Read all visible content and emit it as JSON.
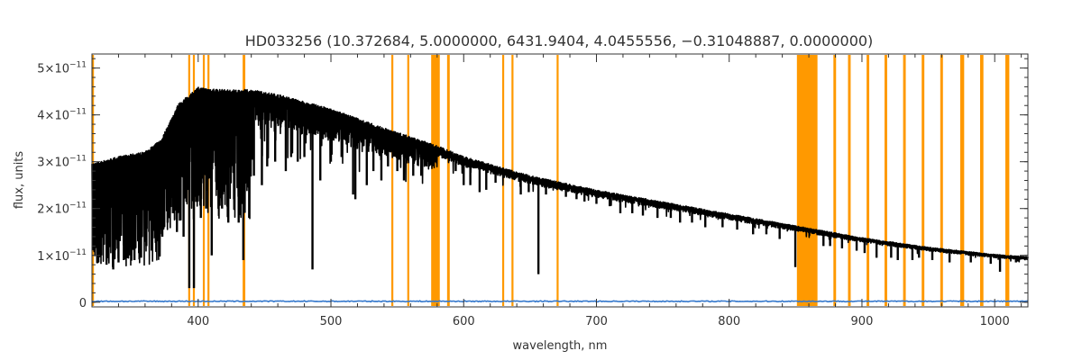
{
  "chart_data": {
    "type": "line",
    "title": "HD033256   (10.372684, 5.0000000, 6431.9404, 4.0455556, −0.31048887, 0.0000000)",
    "xlabel": "wavelength, nm",
    "ylabel": "flux, units",
    "xlim": [
      320,
      1025
    ],
    "ylim": [
      -1e-12,
      5.3e-11
    ],
    "x_ticks": [
      {
        "value": 400,
        "label": "400"
      },
      {
        "value": 500,
        "label": "500"
      },
      {
        "value": 600,
        "label": "600"
      },
      {
        "value": 700,
        "label": "700"
      },
      {
        "value": 800,
        "label": "800"
      },
      {
        "value": 900,
        "label": "900"
      },
      {
        "value": 1000,
        "label": "1000"
      }
    ],
    "y_ticks": [
      {
        "value": 0,
        "mant": "0",
        "exp": ""
      },
      {
        "value": 1e-11,
        "mant": "1×10",
        "exp": "−11"
      },
      {
        "value": 2e-11,
        "mant": "2×10",
        "exp": "−11"
      },
      {
        "value": 3e-11,
        "mant": "3×10",
        "exp": "−11"
      },
      {
        "value": 4e-11,
        "mant": "4×10",
        "exp": "−11"
      },
      {
        "value": 5e-11,
        "mant": "5×10",
        "exp": "−11"
      }
    ],
    "x_minor_step": 20,
    "y_minor_step": 2e-12,
    "colors": {
      "spectrum": "#000000",
      "masked": "#ff9900",
      "error": "#3377cc",
      "axes": "#333333"
    },
    "masked_regions": [
      [
        320,
        321.5
      ],
      [
        392.5,
        394
      ],
      [
        396,
        397.5
      ],
      [
        403.5,
        405
      ],
      [
        407,
        408.5
      ],
      [
        433.5,
        435.5
      ],
      [
        545.5,
        547
      ],
      [
        557.5,
        559
      ],
      [
        575.5,
        582
      ],
      [
        587.5,
        589.5
      ],
      [
        629,
        630.5
      ],
      [
        636,
        637.5
      ],
      [
        670,
        671.5
      ],
      [
        851,
        866.5
      ],
      [
        878.5,
        880.5
      ],
      [
        889.5,
        891.5
      ],
      [
        903.5,
        905.5
      ],
      [
        917,
        919
      ],
      [
        931,
        933
      ],
      [
        945,
        947
      ],
      [
        959,
        961
      ],
      [
        974,
        977
      ],
      [
        989,
        991.5
      ],
      [
        1008,
        1011
      ]
    ],
    "continuum": [
      {
        "x": 320,
        "y": 2.9e-11
      },
      {
        "x": 340,
        "y": 3.05e-11
      },
      {
        "x": 360,
        "y": 3.15e-11
      },
      {
        "x": 372,
        "y": 3.4e-11
      },
      {
        "x": 385,
        "y": 4.15e-11
      },
      {
        "x": 400,
        "y": 4.5e-11
      },
      {
        "x": 420,
        "y": 4.45e-11
      },
      {
        "x": 440,
        "y": 4.45e-11
      },
      {
        "x": 460,
        "y": 4.35e-11
      },
      {
        "x": 500,
        "y": 4.05e-11
      },
      {
        "x": 540,
        "y": 3.65e-11
      },
      {
        "x": 578,
        "y": 3.3e-11
      },
      {
        "x": 600,
        "y": 3.05e-11
      },
      {
        "x": 650,
        "y": 2.65e-11
      },
      {
        "x": 700,
        "y": 2.35e-11
      },
      {
        "x": 750,
        "y": 2.1e-11
      },
      {
        "x": 800,
        "y": 1.85e-11
      },
      {
        "x": 850,
        "y": 1.6e-11
      },
      {
        "x": 900,
        "y": 1.35e-11
      },
      {
        "x": 950,
        "y": 1.15e-11
      },
      {
        "x": 1000,
        "y": 1e-11
      },
      {
        "x": 1025,
        "y": 9.5e-12
      }
    ],
    "absorption_lines": [
      {
        "x": 323,
        "y": 1.2e-11
      },
      {
        "x": 327,
        "y": 1e-11
      },
      {
        "x": 331,
        "y": 8e-12
      },
      {
        "x": 336,
        "y": 7e-12
      },
      {
        "x": 340,
        "y": 8.5e-12
      },
      {
        "x": 344,
        "y": 9e-12
      },
      {
        "x": 348,
        "y": 1e-11
      },
      {
        "x": 352,
        "y": 9e-12
      },
      {
        "x": 357,
        "y": 9.5e-12
      },
      {
        "x": 361,
        "y": 1.2e-11
      },
      {
        "x": 365,
        "y": 1.1e-11
      },
      {
        "x": 369,
        "y": 1.3e-11
      },
      {
        "x": 373,
        "y": 1.4e-11
      },
      {
        "x": 377,
        "y": 1.7e-11
      },
      {
        "x": 381,
        "y": 1.9e-11
      },
      {
        "x": 384,
        "y": 1.5e-11
      },
      {
        "x": 389,
        "y": 1.4e-11
      },
      {
        "x": 393.3,
        "y": 3e-12
      },
      {
        "x": 396.8,
        "y": 3e-12
      },
      {
        "x": 402,
        "y": 1.8e-11
      },
      {
        "x": 406,
        "y": 2e-11
      },
      {
        "x": 410.2,
        "y": 1e-11
      },
      {
        "x": 414,
        "y": 2.4e-11
      },
      {
        "x": 418,
        "y": 2e-11
      },
      {
        "x": 422.7,
        "y": 1.7e-11
      },
      {
        "x": 427,
        "y": 2.2e-11
      },
      {
        "x": 430.5,
        "y": 1.7e-11
      },
      {
        "x": 434,
        "y": 9e-12
      },
      {
        "x": 438.4,
        "y": 1.8e-11
      },
      {
        "x": 442,
        "y": 2.7e-11
      },
      {
        "x": 448,
        "y": 2.5e-11
      },
      {
        "x": 452,
        "y": 2.9e-11
      },
      {
        "x": 458,
        "y": 3e-11
      },
      {
        "x": 466,
        "y": 2.8e-11
      },
      {
        "x": 470,
        "y": 3.1e-11
      },
      {
        "x": 475,
        "y": 3e-11
      },
      {
        "x": 480,
        "y": 3.1e-11
      },
      {
        "x": 486.1,
        "y": 7e-12
      },
      {
        "x": 492,
        "y": 2.6e-11
      },
      {
        "x": 500,
        "y": 3e-11
      },
      {
        "x": 508,
        "y": 3.1e-11
      },
      {
        "x": 516.7,
        "y": 2.3e-11
      },
      {
        "x": 518.4,
        "y": 2.2e-11
      },
      {
        "x": 527,
        "y": 2.5e-11
      },
      {
        "x": 532,
        "y": 2.8e-11
      },
      {
        "x": 538,
        "y": 2.6e-11
      },
      {
        "x": 543,
        "y": 2.9e-11
      },
      {
        "x": 550,
        "y": 2.8e-11
      },
      {
        "x": 555,
        "y": 2.6e-11
      },
      {
        "x": 562,
        "y": 2.7e-11
      },
      {
        "x": 568,
        "y": 2.7e-11
      },
      {
        "x": 572,
        "y": 2.9e-11
      },
      {
        "x": 594,
        "y": 2.8e-11
      },
      {
        "x": 600,
        "y": 2.5e-11
      },
      {
        "x": 605,
        "y": 2.5e-11
      },
      {
        "x": 612,
        "y": 2.35e-11
      },
      {
        "x": 617,
        "y": 2.4e-11
      },
      {
        "x": 624,
        "y": 2.55e-11
      },
      {
        "x": 643,
        "y": 2.3e-11
      },
      {
        "x": 649,
        "y": 2.35e-11
      },
      {
        "x": 656.3,
        "y": 6e-12
      },
      {
        "x": 662,
        "y": 2.3e-11
      },
      {
        "x": 677,
        "y": 2.25e-11
      },
      {
        "x": 685,
        "y": 2.2e-11
      },
      {
        "x": 691,
        "y": 2.15e-11
      },
      {
        "x": 700,
        "y": 2.1e-11
      },
      {
        "x": 710,
        "y": 2.05e-11
      },
      {
        "x": 718,
        "y": 1.9e-11
      },
      {
        "x": 727,
        "y": 1.9e-11
      },
      {
        "x": 735,
        "y": 1.85e-11
      },
      {
        "x": 746,
        "y": 1.8e-11
      },
      {
        "x": 756,
        "y": 1.8e-11
      },
      {
        "x": 763,
        "y": 1.7e-11
      },
      {
        "x": 772,
        "y": 1.7e-11
      },
      {
        "x": 782,
        "y": 1.6e-11
      },
      {
        "x": 795,
        "y": 1.6e-11
      },
      {
        "x": 806,
        "y": 1.55e-11
      },
      {
        "x": 818,
        "y": 1.45e-11
      },
      {
        "x": 828,
        "y": 1.45e-11
      },
      {
        "x": 838,
        "y": 1.35e-11
      },
      {
        "x": 849.8,
        "y": 7.5e-12
      },
      {
        "x": 871,
        "y": 1.2e-11
      },
      {
        "x": 876,
        "y": 1.2e-11
      },
      {
        "x": 885,
        "y": 1.15e-11
      },
      {
        "x": 896,
        "y": 1.1e-11
      },
      {
        "x": 902,
        "y": 1.05e-11
      },
      {
        "x": 911,
        "y": 9.5e-12
      },
      {
        "x": 922,
        "y": 9.5e-12
      },
      {
        "x": 927,
        "y": 9e-12
      },
      {
        "x": 938,
        "y": 9e-12
      },
      {
        "x": 943,
        "y": 9.5e-12
      },
      {
        "x": 953,
        "y": 9e-12
      },
      {
        "x": 966,
        "y": 8.5e-12
      },
      {
        "x": 982,
        "y": 8.5e-12
      },
      {
        "x": 997,
        "y": 8.2e-12
      },
      {
        "x": 1004,
        "y": 6.5e-12
      },
      {
        "x": 1016,
        "y": 8.5e-12
      }
    ],
    "error_level": 2e-13
  }
}
